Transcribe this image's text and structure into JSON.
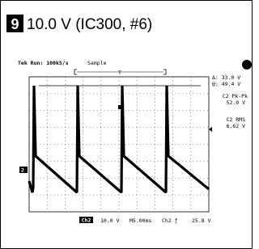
{
  "header": {
    "badge": "9",
    "title": "10.0 V (IC300, #6)"
  },
  "scope": {
    "status": "Tek Run: 100kS/s",
    "mode": "Sample",
    "trigger_marker": "T",
    "cursor_delta": "Δ: 33.0 V",
    "cursor_at": "@: 49.4 V",
    "measurements": [
      {
        "label": "C2 Pk-Pk",
        "value": "52.0 V"
      },
      {
        "label": "C2 RMS",
        "value": "6.62 V"
      }
    ],
    "ground_marker": "2",
    "footer": {
      "channel": "Ch2",
      "volts_div": "10.0 V",
      "timebase": "M5.00ms",
      "trigger_source": "Ch2 ƒ",
      "trigger_level": "25.8 V"
    }
  }
}
